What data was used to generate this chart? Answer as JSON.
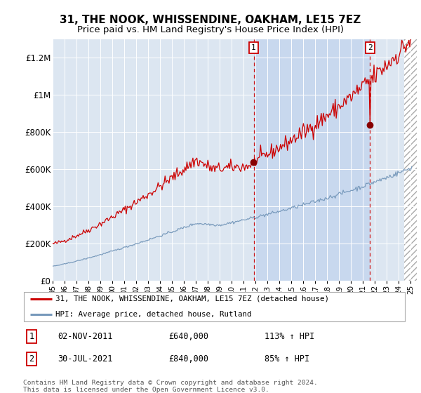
{
  "title": "31, THE NOOK, WHISSENDINE, OAKHAM, LE15 7EZ",
  "subtitle": "Price paid vs. HM Land Registry's House Price Index (HPI)",
  "ylabel_ticks": [
    "£0",
    "£200K",
    "£400K",
    "£600K",
    "£800K",
    "£1M",
    "£1.2M"
  ],
  "ylim": [
    0,
    1300000
  ],
  "yticks": [
    0,
    200000,
    400000,
    600000,
    800000,
    1000000,
    1200000
  ],
  "red_line_color": "#cc0000",
  "blue_line_color": "#7799bb",
  "bg_color": "#dce6f1",
  "highlight_bg_color": "#c8d8ee",
  "transaction1_date": "02-NOV-2011",
  "transaction1_price": "£640,000",
  "transaction1_pct": "113%",
  "transaction2_date": "30-JUL-2021",
  "transaction2_price": "£840,000",
  "transaction2_pct": "85%",
  "transaction1_x": 2011.84,
  "transaction2_x": 2021.58,
  "legend_line1": "31, THE NOOK, WHISSENDINE, OAKHAM, LE15 7EZ (detached house)",
  "legend_line2": "HPI: Average price, detached house, Rutland",
  "footnote1": "Contains HM Land Registry data © Crown copyright and database right 2024.",
  "footnote2": "This data is licensed under the Open Government Licence v3.0.",
  "title_fontsize": 11,
  "subtitle_fontsize": 9.5
}
